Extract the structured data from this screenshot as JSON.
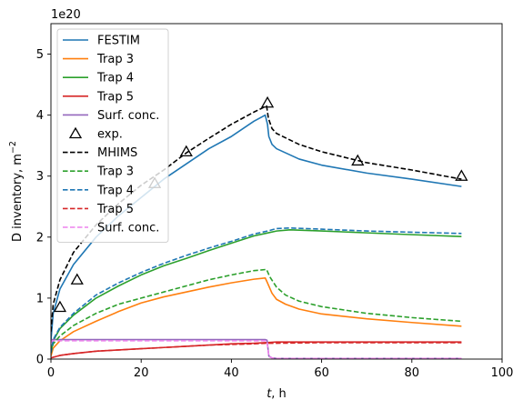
{
  "chart_data": {
    "type": "line",
    "xlabel_var": "t",
    "xlabel_unit": ", h",
    "ylabel": "D inventory, m",
    "ylabel_exp": "−2",
    "y_offset_label": "1e20",
    "xlim": [
      0,
      100
    ],
    "ylim": [
      0,
      5.5
    ],
    "xticks": [
      0,
      20,
      40,
      60,
      80,
      100
    ],
    "yticks": [
      0,
      1,
      2,
      3,
      4,
      5
    ],
    "grid": false,
    "legend_position": "upper-left",
    "series": [
      {
        "name": "FESTIM",
        "style": "solid",
        "color": "#1f77b4",
        "x": [
          0,
          0.5,
          2,
          5,
          10,
          15,
          20,
          25,
          30,
          35,
          40,
          45,
          47.5,
          48,
          48.3,
          49,
          50,
          55,
          60,
          70,
          80,
          91
        ],
        "y": [
          0.3,
          0.75,
          1.15,
          1.55,
          2.0,
          2.35,
          2.65,
          2.95,
          3.2,
          3.45,
          3.65,
          3.9,
          4.0,
          3.85,
          3.65,
          3.52,
          3.45,
          3.28,
          3.18,
          3.05,
          2.95,
          2.83
        ]
      },
      {
        "name": "Trap 3",
        "style": "solid",
        "color": "#ff7f0e",
        "x": [
          0,
          0.5,
          2,
          5,
          10,
          15,
          20,
          25,
          30,
          35,
          40,
          45,
          47.5,
          48,
          49,
          50,
          52,
          55,
          60,
          70,
          80,
          91
        ],
        "y": [
          0.05,
          0.18,
          0.3,
          0.45,
          0.62,
          0.78,
          0.92,
          1.02,
          1.1,
          1.18,
          1.25,
          1.31,
          1.33,
          1.25,
          1.08,
          0.98,
          0.9,
          0.82,
          0.74,
          0.66,
          0.6,
          0.54
        ]
      },
      {
        "name": "Trap 4",
        "style": "solid",
        "color": "#2ca02c",
        "x": [
          0,
          0.5,
          2,
          5,
          10,
          15,
          20,
          25,
          30,
          35,
          40,
          45,
          47.5,
          50,
          53,
          60,
          70,
          80,
          91
        ],
        "y": [
          0.1,
          0.3,
          0.5,
          0.72,
          1.0,
          1.2,
          1.38,
          1.53,
          1.65,
          1.78,
          1.9,
          2.02,
          2.06,
          2.1,
          2.12,
          2.1,
          2.07,
          2.04,
          2.01
        ]
      },
      {
        "name": "Trap 5",
        "style": "solid",
        "color": "#d62728",
        "x": [
          0,
          2,
          5,
          10,
          15,
          20,
          25,
          30,
          35,
          40,
          45,
          47.5,
          50,
          60,
          70,
          80,
          91
        ],
        "y": [
          0.02,
          0.06,
          0.09,
          0.13,
          0.15,
          0.17,
          0.19,
          0.21,
          0.23,
          0.25,
          0.26,
          0.27,
          0.28,
          0.28,
          0.28,
          0.28,
          0.28
        ]
      },
      {
        "name": "Surf. conc.",
        "style": "solid",
        "color": "#9467bd",
        "x": [
          0,
          0.3,
          10,
          20,
          30,
          40,
          47.5,
          47.9,
          48.3,
          49,
          50,
          60,
          70,
          80,
          91
        ],
        "y": [
          0.28,
          0.32,
          0.32,
          0.32,
          0.32,
          0.32,
          0.32,
          0.31,
          0.05,
          0.02,
          0.01,
          0.01,
          0.01,
          0.01,
          0.01
        ]
      },
      {
        "name": "exp.",
        "style": "marker",
        "color": "#000000",
        "x": [
          2,
          5.8,
          23,
          30,
          48,
          68,
          91
        ],
        "y": [
          0.85,
          1.3,
          2.88,
          3.4,
          4.2,
          3.25,
          3.0
        ]
      },
      {
        "name": "MHIMS",
        "style": "dashed",
        "color": "#000000",
        "x": [
          0,
          0.5,
          2,
          5,
          10,
          15,
          20,
          25,
          30,
          35,
          40,
          45,
          47.8,
          48.2,
          49,
          50,
          55,
          60,
          70,
          80,
          91
        ],
        "y": [
          0.45,
          0.9,
          1.3,
          1.75,
          2.2,
          2.55,
          2.85,
          3.1,
          3.38,
          3.62,
          3.85,
          4.05,
          4.15,
          3.95,
          3.78,
          3.7,
          3.52,
          3.4,
          3.22,
          3.1,
          2.95
        ]
      },
      {
        "name": "Trap 3",
        "style": "dashed",
        "color": "#2ca02c",
        "x": [
          0,
          0.5,
          2,
          5,
          10,
          15,
          20,
          25,
          30,
          35,
          40,
          45,
          47.8,
          48.5,
          50,
          52,
          55,
          60,
          70,
          80,
          91
        ],
        "y": [
          0.1,
          0.25,
          0.38,
          0.55,
          0.75,
          0.9,
          1.0,
          1.1,
          1.2,
          1.3,
          1.38,
          1.45,
          1.47,
          1.35,
          1.18,
          1.05,
          0.95,
          0.86,
          0.75,
          0.68,
          0.62
        ]
      },
      {
        "name": "Trap 4",
        "style": "dashed",
        "color": "#1f77b4",
        "x": [
          0,
          0.5,
          2,
          5,
          10,
          15,
          20,
          25,
          30,
          35,
          40,
          45,
          48,
          50,
          53,
          60,
          70,
          80,
          91
        ],
        "y": [
          0.1,
          0.32,
          0.52,
          0.75,
          1.05,
          1.25,
          1.42,
          1.57,
          1.7,
          1.82,
          1.93,
          2.05,
          2.1,
          2.14,
          2.15,
          2.13,
          2.1,
          2.08,
          2.06
        ]
      },
      {
        "name": "Trap 5",
        "style": "dashed",
        "color": "#d62728",
        "x": [
          0,
          2,
          5,
          10,
          15,
          20,
          25,
          30,
          35,
          40,
          45,
          48,
          50,
          60,
          70,
          80,
          91
        ],
        "y": [
          0.02,
          0.06,
          0.09,
          0.13,
          0.15,
          0.17,
          0.19,
          0.21,
          0.23,
          0.24,
          0.25,
          0.26,
          0.26,
          0.27,
          0.27,
          0.27,
          0.27
        ]
      },
      {
        "name": "Surf. conc.",
        "style": "dashed",
        "color": "#ee82ee",
        "x": [
          0,
          0.3,
          10,
          20,
          30,
          40,
          47.5,
          47.9,
          48.3,
          49,
          50,
          60,
          70,
          80,
          91
        ],
        "y": [
          0.27,
          0.3,
          0.3,
          0.3,
          0.3,
          0.3,
          0.3,
          0.29,
          0.04,
          0.02,
          0.01,
          0.01,
          0.01,
          0.01,
          0.01
        ]
      }
    ]
  }
}
